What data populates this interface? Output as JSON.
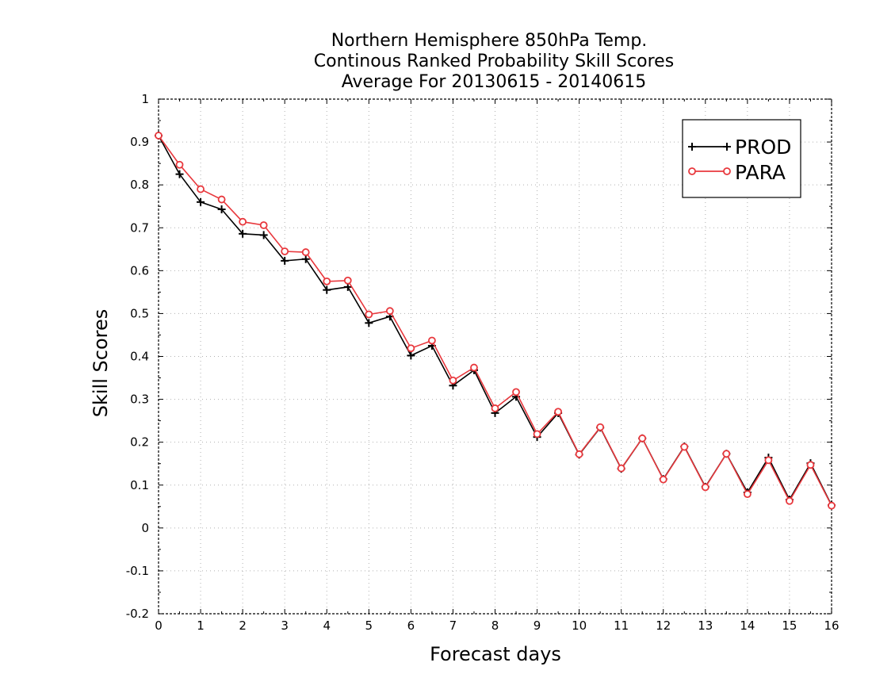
{
  "chart_data": {
    "type": "line",
    "title_lines": [
      "Northern Hemisphere 850hPa Temp.",
      "Continous Ranked Probability Skill Scores",
      "Average For 20130615 - 20140615"
    ],
    "xlabel": "Forecast days",
    "ylabel": "Skill Scores",
    "xlim": [
      0,
      16
    ],
    "ylim": [
      -0.2,
      1
    ],
    "x_ticks": [
      "0",
      "1",
      "2",
      "3",
      "4",
      "5",
      "6",
      "7",
      "8",
      "9",
      "10",
      "11",
      "12",
      "13",
      "14",
      "15",
      "16"
    ],
    "y_ticks": [
      "-0.2",
      "-0.1",
      "0",
      "0.1",
      "0.2",
      "0.3",
      "0.4",
      "0.5",
      "0.6",
      "0.7",
      "0.8",
      "0.9",
      "1"
    ],
    "grid": true,
    "legend_position": "top-right",
    "x": [
      0,
      0.5,
      1,
      1.5,
      2,
      2.5,
      3,
      3.5,
      4,
      4.5,
      5,
      5.5,
      6,
      6.5,
      7,
      7.5,
      8,
      8.5,
      9,
      9.5,
      10,
      10.5,
      11,
      11.5,
      12,
      12.5,
      13,
      13.5,
      14,
      14.5,
      15,
      15.5,
      16
    ],
    "series": [
      {
        "name": "PROD",
        "color": "#000000",
        "marker": "plus",
        "values": [
          0.915,
          0.825,
          0.76,
          0.743,
          0.686,
          0.683,
          0.623,
          0.627,
          0.555,
          0.562,
          0.478,
          0.493,
          0.402,
          0.425,
          0.332,
          0.368,
          0.268,
          0.306,
          0.212,
          0.268,
          0.171,
          0.234,
          0.138,
          0.209,
          0.114,
          0.19,
          0.096,
          0.173,
          0.083,
          0.164,
          0.066,
          0.151,
          0.053
        ]
      },
      {
        "name": "PARA",
        "color": "#e8383d",
        "marker": "circle",
        "values": [
          0.915,
          0.847,
          0.79,
          0.766,
          0.714,
          0.706,
          0.645,
          0.643,
          0.575,
          0.577,
          0.498,
          0.506,
          0.419,
          0.437,
          0.344,
          0.374,
          0.279,
          0.317,
          0.219,
          0.271,
          0.172,
          0.235,
          0.139,
          0.209,
          0.113,
          0.189,
          0.095,
          0.173,
          0.079,
          0.158,
          0.063,
          0.147,
          0.052
        ]
      }
    ]
  }
}
